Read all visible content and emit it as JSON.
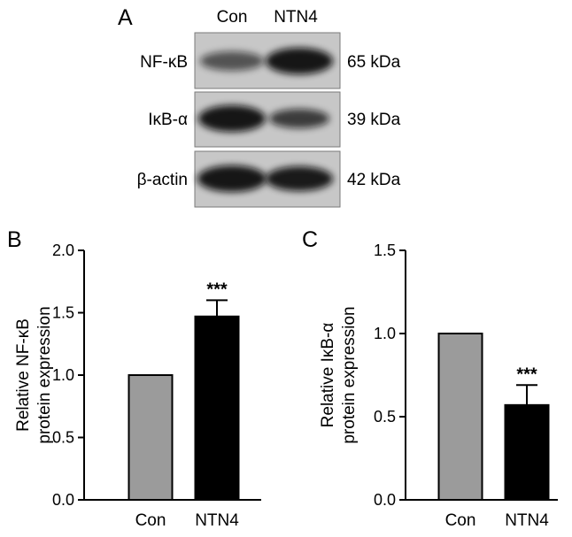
{
  "figure": {
    "panel_labels": {
      "a": "A",
      "b": "B",
      "c": "C"
    }
  },
  "blot": {
    "lanes": [
      "Con",
      "NTN4"
    ],
    "rows": [
      {
        "label": "NF-κB",
        "kda": "65 kDa",
        "band_intensity": [
          0.62,
          0.95
        ]
      },
      {
        "label": "IκB-α",
        "kda": "39 kDa",
        "band_intensity": [
          0.95,
          0.75
        ]
      },
      {
        "label": "β-actin",
        "kda": "42 kDa",
        "band_intensity": [
          0.95,
          0.93
        ]
      }
    ]
  },
  "chart_data": [
    {
      "type": "bar",
      "panel": "B",
      "categories": [
        "Con",
        "NTN4"
      ],
      "values": [
        1.0,
        1.47
      ],
      "errors": [
        0,
        0.13
      ],
      "significance": [
        "",
        "***"
      ],
      "ylabel_line1": "Relative NF-κB",
      "ylabel_line2": "protein expression",
      "ylim": [
        0,
        2.0
      ],
      "yticks": [
        "0.0",
        "0.5",
        "1.0",
        "1.5",
        "2.0"
      ],
      "bar_colors": [
        "#9b9b9b",
        "#000000"
      ],
      "grid": false
    },
    {
      "type": "bar",
      "panel": "C",
      "categories": [
        "Con",
        "NTN4"
      ],
      "values": [
        1.0,
        0.57
      ],
      "errors": [
        0,
        0.12
      ],
      "significance": [
        "",
        "***"
      ],
      "ylabel_line1": "Relative IκB-α",
      "ylabel_line2": "protein expression",
      "ylim": [
        0,
        1.5
      ],
      "yticks": [
        "0.0",
        "0.5",
        "1.0",
        "1.5"
      ],
      "bar_colors": [
        "#9b9b9b",
        "#000000"
      ],
      "grid": false
    }
  ]
}
